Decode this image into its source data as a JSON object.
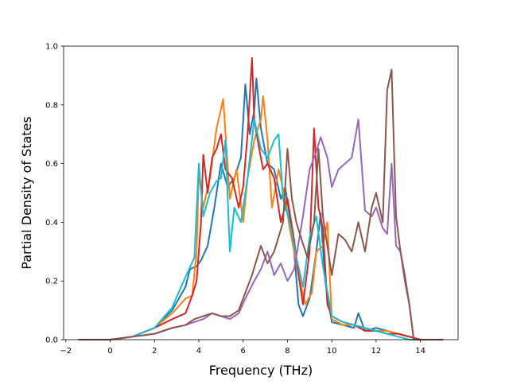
{
  "chart_data": {
    "type": "line",
    "title": "",
    "xlabel": "Frequency (THz)",
    "ylabel": "Partial Density of States",
    "xlim": [
      -2.1,
      15.7
    ],
    "ylim": [
      0.0,
      1.0
    ],
    "x_ticks": [
      -2,
      0,
      2,
      4,
      6,
      8,
      10,
      12,
      14
    ],
    "y_ticks": [
      0.0,
      0.2,
      0.4,
      0.6,
      0.8,
      1.0
    ],
    "x_tick_labels": [
      "−2",
      "0",
      "2",
      "4",
      "6",
      "8",
      "10",
      "12",
      "14"
    ],
    "y_tick_labels": [
      "0.0",
      "0.2",
      "0.4",
      "0.6",
      "0.8",
      "1.0"
    ],
    "grid": false,
    "legend": "none",
    "series": [
      {
        "color": "#1f77b4",
        "x": [
          -1.4,
          0,
          1,
          2,
          2.8,
          3.4,
          3.6,
          3.9,
          4.1,
          4.4,
          4.7,
          5.0,
          5.3,
          5.6,
          5.9,
          6.1,
          6.3,
          6.5,
          6.6,
          6.8,
          7.1,
          7.4,
          7.7,
          7.9,
          8.1,
          8.3,
          8.5,
          8.7,
          9.0,
          9.3,
          9.5,
          9.7,
          10.0,
          10.5,
          11.0,
          11.2,
          11.5,
          12.0,
          12.5,
          13.0,
          13.5,
          14.0,
          15.0
        ],
        "y": [
          0,
          0,
          0.01,
          0.04,
          0.1,
          0.18,
          0.24,
          0.25,
          0.27,
          0.32,
          0.45,
          0.6,
          0.52,
          0.55,
          0.62,
          0.87,
          0.7,
          0.78,
          0.89,
          0.72,
          0.6,
          0.58,
          0.48,
          0.52,
          0.42,
          0.3,
          0.12,
          0.08,
          0.14,
          0.3,
          0.43,
          0.2,
          0.06,
          0.05,
          0.04,
          0.09,
          0.03,
          0.04,
          0.03,
          0.02,
          0.01,
          0,
          0
        ]
      },
      {
        "color": "#ff7f0e",
        "x": [
          -1.4,
          0,
          1,
          2,
          2.8,
          3.4,
          3.7,
          3.9,
          4.0,
          4.2,
          4.5,
          4.8,
          5.1,
          5.4,
          5.7,
          6.0,
          6.2,
          6.5,
          6.8,
          6.9,
          7.1,
          7.3,
          7.6,
          7.9,
          8.1,
          8.3,
          8.5,
          8.8,
          9.1,
          9.3,
          9.6,
          9.8,
          10.0,
          10.5,
          11.0,
          11.5,
          12.0,
          12.5,
          13.0,
          13.5,
          14.0,
          15.0
        ],
        "y": [
          0,
          0,
          0.01,
          0.04,
          0.09,
          0.14,
          0.15,
          0.3,
          0.57,
          0.45,
          0.55,
          0.72,
          0.82,
          0.48,
          0.58,
          0.4,
          0.55,
          0.68,
          0.75,
          0.83,
          0.68,
          0.45,
          0.58,
          0.48,
          0.38,
          0.3,
          0.22,
          0.12,
          0.16,
          0.3,
          0.32,
          0.4,
          0.07,
          0.05,
          0.05,
          0.04,
          0.03,
          0.03,
          0.02,
          0.01,
          0,
          0
        ]
      },
      {
        "color": "#d62728",
        "x": [
          -1.4,
          0,
          1,
          2,
          2.8,
          3.4,
          3.7,
          3.9,
          4.1,
          4.2,
          4.4,
          4.6,
          4.8,
          5.0,
          5.2,
          5.5,
          5.8,
          6.0,
          6.2,
          6.4,
          6.5,
          6.7,
          6.9,
          7.1,
          7.4,
          7.7,
          8.0,
          8.3,
          8.5,
          8.7,
          9.0,
          9.2,
          9.4,
          9.6,
          9.8,
          10.0,
          10.5,
          11.0,
          11.5,
          12.0,
          12.5,
          13.0,
          13.5,
          14.0,
          15.0
        ],
        "y": [
          0,
          0,
          0.01,
          0.04,
          0.07,
          0.09,
          0.15,
          0.2,
          0.4,
          0.63,
          0.5,
          0.62,
          0.65,
          0.7,
          0.58,
          0.55,
          0.45,
          0.52,
          0.7,
          0.96,
          0.75,
          0.66,
          0.58,
          0.6,
          0.55,
          0.4,
          0.48,
          0.34,
          0.22,
          0.12,
          0.3,
          0.72,
          0.45,
          0.38,
          0.12,
          0.08,
          0.06,
          0.05,
          0.03,
          0.03,
          0.02,
          0.02,
          0.01,
          0,
          0
        ]
      },
      {
        "color": "#17becf",
        "x": [
          -1.4,
          0,
          1,
          2,
          2.8,
          3.2,
          3.5,
          3.8,
          4.0,
          4.2,
          4.5,
          4.8,
          5.0,
          5.2,
          5.4,
          5.6,
          5.9,
          6.2,
          6.5,
          6.8,
          7.1,
          7.4,
          7.6,
          7.8,
          8.1,
          8.4,
          8.7,
          9.0,
          9.3,
          9.6,
          10.0,
          10.5,
          11.0,
          11.5,
          12.0,
          12.5,
          13.0,
          13.5,
          14.0,
          15.0
        ],
        "y": [
          0,
          0,
          0.01,
          0.04,
          0.11,
          0.18,
          0.23,
          0.28,
          0.6,
          0.42,
          0.5,
          0.54,
          0.55,
          0.68,
          0.3,
          0.45,
          0.4,
          0.55,
          0.75,
          0.65,
          0.62,
          0.68,
          0.7,
          0.48,
          0.4,
          0.28,
          0.18,
          0.35,
          0.42,
          0.25,
          0.08,
          0.06,
          0.05,
          0.04,
          0.03,
          0.02,
          0.01,
          0,
          0,
          0
        ]
      },
      {
        "color": "#9467bd",
        "x": [
          -1.4,
          0,
          1,
          2,
          2.8,
          3.4,
          3.8,
          4.2,
          4.6,
          5.0,
          5.4,
          5.8,
          6.1,
          6.5,
          6.8,
          7.1,
          7.4,
          7.7,
          8.0,
          8.3,
          8.7,
          9.0,
          9.3,
          9.5,
          9.8,
          10.0,
          10.3,
          10.6,
          10.9,
          11.2,
          11.5,
          11.8,
          12.0,
          12.3,
          12.5,
          12.7,
          12.9,
          13.1,
          13.3,
          13.5,
          13.7,
          14.0,
          15.0
        ],
        "y": [
          0,
          0,
          0.01,
          0.02,
          0.04,
          0.05,
          0.06,
          0.07,
          0.09,
          0.08,
          0.07,
          0.09,
          0.14,
          0.2,
          0.24,
          0.3,
          0.22,
          0.26,
          0.2,
          0.24,
          0.42,
          0.58,
          0.64,
          0.69,
          0.62,
          0.52,
          0.58,
          0.6,
          0.62,
          0.75,
          0.44,
          0.42,
          0.45,
          0.38,
          0.36,
          0.6,
          0.32,
          0.3,
          0.22,
          0.12,
          0,
          0,
          0
        ]
      },
      {
        "color": "#8c564b",
        "x": [
          -1.4,
          0,
          1,
          2,
          2.8,
          3.4,
          3.8,
          4.2,
          4.6,
          5.0,
          5.4,
          5.8,
          6.1,
          6.4,
          6.8,
          7.1,
          7.4,
          7.8,
          8.0,
          8.2,
          8.4,
          8.6,
          8.9,
          9.2,
          9.4,
          9.6,
          9.8,
          10.0,
          10.3,
          10.6,
          10.9,
          11.2,
          11.5,
          11.8,
          12.0,
          12.3,
          12.5,
          12.7,
          12.9,
          13.1,
          13.3,
          13.5,
          13.7,
          14.0,
          15.0
        ],
        "y": [
          0,
          0,
          0.01,
          0.02,
          0.04,
          0.05,
          0.07,
          0.08,
          0.09,
          0.08,
          0.08,
          0.1,
          0.16,
          0.22,
          0.32,
          0.26,
          0.3,
          0.4,
          0.65,
          0.48,
          0.4,
          0.35,
          0.28,
          0.4,
          0.65,
          0.42,
          0.32,
          0.22,
          0.36,
          0.34,
          0.3,
          0.4,
          0.3,
          0.45,
          0.5,
          0.4,
          0.85,
          0.92,
          0.42,
          0.3,
          0.2,
          0.12,
          0,
          0,
          0
        ]
      }
    ]
  }
}
